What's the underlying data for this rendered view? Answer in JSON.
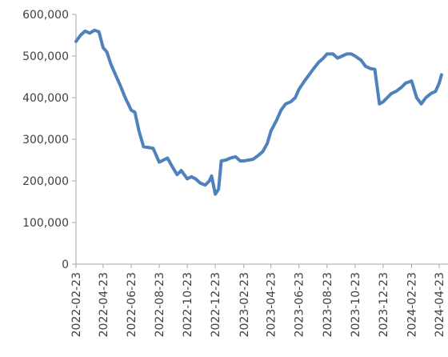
{
  "chart_data": {
    "type": "line",
    "title": "",
    "xlabel": "",
    "ylabel": "",
    "ylim": [
      0,
      600000
    ],
    "yticks": [
      0,
      100000,
      200000,
      300000,
      400000,
      500000,
      600000
    ],
    "ytick_labels": [
      "0",
      "100,000",
      "200,000",
      "300,000",
      "400,000",
      "500,000",
      "600,000"
    ],
    "xticks": [
      "2022-02-23",
      "2022-04-23",
      "2022-06-23",
      "2022-08-23",
      "2022-10-23",
      "2022-12-23",
      "2023-02-23",
      "2023-04-23",
      "2023-06-23",
      "2023-08-23",
      "2023-10-23",
      "2023-12-23",
      "2024-02-23",
      "2024-04-23"
    ],
    "grid": false,
    "legend": "none",
    "series": [
      {
        "color": "#4f81bd",
        "x": [
          "2022-02-23",
          "2022-03-05",
          "2022-03-15",
          "2022-03-25",
          "2022-04-04",
          "2022-04-14",
          "2022-04-23",
          "2022-05-01",
          "2022-05-10",
          "2022-05-20",
          "2022-05-30",
          "2022-06-10",
          "2022-06-23",
          "2022-07-01",
          "2022-07-10",
          "2022-07-20",
          "2022-08-01",
          "2022-08-10",
          "2022-08-23",
          "2022-09-01",
          "2022-09-10",
          "2022-09-20",
          "2022-10-01",
          "2022-10-10",
          "2022-10-23",
          "2022-11-01",
          "2022-11-10",
          "2022-11-20",
          "2022-12-01",
          "2022-12-10",
          "2022-12-15",
          "2022-12-23",
          "2022-12-30",
          "2023-01-05",
          "2023-01-15",
          "2023-01-25",
          "2023-02-05",
          "2023-02-15",
          "2023-02-23",
          "2023-03-05",
          "2023-03-15",
          "2023-03-25",
          "2023-04-05",
          "2023-04-15",
          "2023-04-23",
          "2023-05-05",
          "2023-05-15",
          "2023-05-25",
          "2023-06-05",
          "2023-06-15",
          "2023-06-23",
          "2023-07-05",
          "2023-07-15",
          "2023-07-25",
          "2023-08-05",
          "2023-08-15",
          "2023-08-23",
          "2023-09-05",
          "2023-09-15",
          "2023-09-25",
          "2023-10-05",
          "2023-10-15",
          "2023-10-23",
          "2023-11-05",
          "2023-11-15",
          "2023-11-25",
          "2023-12-05",
          "2023-12-15",
          "2023-12-23",
          "2024-01-01",
          "2024-01-10",
          "2024-01-20",
          "2024-02-01",
          "2024-02-10",
          "2024-02-23",
          "2024-03-05",
          "2024-03-15",
          "2024-03-25",
          "2024-04-05",
          "2024-04-15",
          "2024-04-23",
          "2024-04-28"
        ],
        "y": [
          535000,
          550000,
          560000,
          555000,
          562000,
          558000,
          520000,
          510000,
          480000,
          455000,
          430000,
          400000,
          370000,
          365000,
          320000,
          282000,
          280000,
          278000,
          245000,
          250000,
          255000,
          235000,
          215000,
          225000,
          205000,
          210000,
          205000,
          195000,
          190000,
          200000,
          212000,
          168000,
          180000,
          248000,
          250000,
          255000,
          258000,
          248000,
          248000,
          250000,
          252000,
          260000,
          270000,
          290000,
          320000,
          345000,
          370000,
          385000,
          390000,
          400000,
          420000,
          440000,
          455000,
          470000,
          485000,
          495000,
          505000,
          505000,
          495000,
          500000,
          505000,
          505000,
          500000,
          490000,
          475000,
          470000,
          468000,
          385000,
          390000,
          400000,
          410000,
          415000,
          425000,
          435000,
          440000,
          400000,
          385000,
          400000,
          410000,
          415000,
          435000,
          455000
        ]
      }
    ]
  }
}
